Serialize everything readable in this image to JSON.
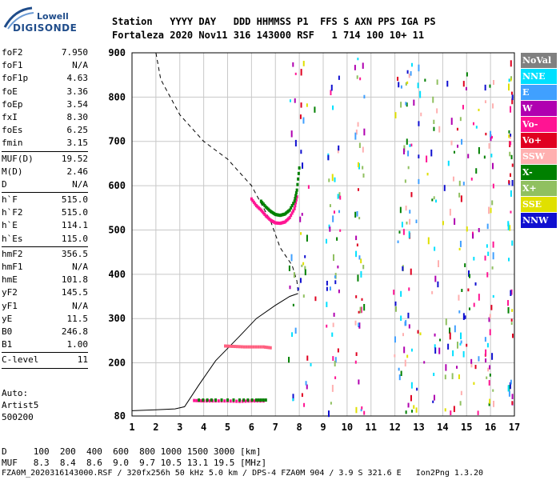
{
  "logo": {
    "line1": "Lowell",
    "line2": "DIGISONDE"
  },
  "header": {
    "line1": "Station   YYYY DAY   DDD HHMMSS P1  FFS S AXN PPS IGA PS",
    "line2": "Fortaleza 2020 Nov11 316 143000 RSF   1 714 100 10+ 11"
  },
  "params": [
    {
      "k": "foF2",
      "v": "7.950"
    },
    {
      "k": "foF1",
      "v": "N/A"
    },
    {
      "k": "foF1p",
      "v": "4.63"
    },
    {
      "k": "foE",
      "v": "3.36"
    },
    {
      "k": "foEp",
      "v": "3.54"
    },
    {
      "k": "fxI",
      "v": "8.30"
    },
    {
      "k": "foEs",
      "v": "6.25"
    },
    {
      "k": "fmin",
      "v": "3.15"
    },
    {
      "sep": true
    },
    {
      "k": "MUF(D)",
      "v": "19.52"
    },
    {
      "k": "M(D)",
      "v": "2.46"
    },
    {
      "k": "D",
      "v": "N/A"
    },
    {
      "sep": true
    },
    {
      "k": "h`F",
      "v": "515.0"
    },
    {
      "k": "h`F2",
      "v": "515.0"
    },
    {
      "k": "h`E",
      "v": "114.1"
    },
    {
      "k": "h`Es",
      "v": "115.0"
    },
    {
      "sep": true
    },
    {
      "k": "hmF2",
      "v": "356.5"
    },
    {
      "k": "hmF1",
      "v": "N/A"
    },
    {
      "k": "hmE",
      "v": "101.8"
    },
    {
      "k": "yF2",
      "v": "145.5"
    },
    {
      "k": "yF1",
      "v": "N/A"
    },
    {
      "k": "yE",
      "v": "11.5"
    },
    {
      "k": "B0",
      "v": "246.8"
    },
    {
      "k": "B1",
      "v": "1.00"
    },
    {
      "sep": true
    },
    {
      "k": "C-level",
      "v": "11"
    },
    {
      "sep": true
    }
  ],
  "auto": {
    "line1": "Auto:",
    "line2": "Artist5",
    "line3": "500200"
  },
  "footer": {
    "line1": "D     100  200  400  600  800 1000 1500 3000 [km]",
    "line2": "MUF   8.3  8.4  8.6  9.0  9.7 10.5 13.1 19.5 [MHz]",
    "line3": "FZA0M_2020316143000.RSF / 320fx256h 50 kHz 5.0 km / DPS-4 FZA0M 904 / 3.9 S 321.6 E   Ion2Png 1.3.20"
  },
  "legend": [
    {
      "label": "NoVal",
      "bg": "#808080",
      "fg": "#ffffff"
    },
    {
      "label": "NNE",
      "bg": "#00e0ff",
      "fg": "#ffffff"
    },
    {
      "label": "E",
      "bg": "#40a0ff",
      "fg": "#ffffff"
    },
    {
      "label": "W",
      "bg": "#b000b0",
      "fg": "#ffffff"
    },
    {
      "label": "Vo-",
      "bg": "#ff1493",
      "fg": "#ffffff"
    },
    {
      "label": "Vo+",
      "bg": "#e00020",
      "fg": "#ffffff"
    },
    {
      "label": "SSW",
      "bg": "#ffb0b0",
      "fg": "#ffffff"
    },
    {
      "label": "X-",
      "bg": "#008000",
      "fg": "#ffffff"
    },
    {
      "label": "X+",
      "bg": "#90c060",
      "fg": "#ffffff"
    },
    {
      "label": "SSE",
      "bg": "#e0e000",
      "fg": "#ffffff"
    },
    {
      "label": "NNW",
      "bg": "#1010d0",
      "fg": "#ffffff"
    }
  ],
  "chart_data": {
    "type": "scatter",
    "xlim": [
      1,
      17
    ],
    "ylim": [
      80,
      900
    ],
    "x_ticks": [
      1,
      2,
      3,
      4,
      5,
      6,
      7,
      8,
      9,
      10,
      11,
      12,
      13,
      14,
      15,
      16,
      17
    ],
    "y_ticks": [
      80,
      200,
      300,
      400,
      500,
      600,
      700,
      800,
      900
    ],
    "grid": true,
    "series": [
      {
        "name": "F2 trace (Vo-)",
        "color": "#ff1493",
        "points": [
          [
            6.0,
            570
          ],
          [
            6.2,
            555
          ],
          [
            6.4,
            545
          ],
          [
            6.6,
            532
          ],
          [
            6.8,
            522
          ],
          [
            7.0,
            516
          ],
          [
            7.2,
            515
          ],
          [
            7.4,
            518
          ],
          [
            7.6,
            528
          ],
          [
            7.8,
            548
          ],
          [
            7.9,
            575
          ]
        ]
      },
      {
        "name": "F2 trace (X-)",
        "color": "#008000",
        "points": [
          [
            6.4,
            565
          ],
          [
            6.6,
            552
          ],
          [
            6.8,
            542
          ],
          [
            7.0,
            535
          ],
          [
            7.2,
            533
          ],
          [
            7.4,
            536
          ],
          [
            7.6,
            545
          ],
          [
            7.8,
            565
          ],
          [
            7.9,
            590
          ],
          [
            8.0,
            640
          ]
        ]
      },
      {
        "name": "E/Es trace (Vo-)",
        "color": "#ff1493",
        "points": [
          [
            3.6,
            115
          ],
          [
            4.0,
            114
          ],
          [
            4.5,
            114
          ],
          [
            5.0,
            114
          ],
          [
            5.5,
            113
          ],
          [
            6.0,
            114
          ],
          [
            6.5,
            114
          ]
        ]
      },
      {
        "name": "Es trace (X-)",
        "color": "#008000",
        "points": [
          [
            3.8,
            116
          ],
          [
            4.5,
            116
          ],
          [
            5.5,
            116
          ],
          [
            6.2,
            116
          ],
          [
            6.6,
            116
          ]
        ]
      },
      {
        "name": "Oblique trace",
        "color": "#ff6080",
        "points": [
          [
            4.9,
            238
          ],
          [
            5.3,
            237
          ],
          [
            5.7,
            236
          ],
          [
            6.1,
            236
          ],
          [
            6.5,
            236
          ],
          [
            6.8,
            234
          ]
        ]
      }
    ],
    "profile": {
      "electron_density_solid": [
        [
          1.0,
          92
        ],
        [
          2.0,
          94
        ],
        [
          2.8,
          96
        ],
        [
          3.2,
          101
        ],
        [
          3.8,
          150
        ],
        [
          4.5,
          205
        ],
        [
          5.5,
          260
        ],
        [
          6.2,
          300
        ],
        [
          7.0,
          330
        ],
        [
          7.6,
          350
        ],
        [
          7.95,
          356.5
        ]
      ],
      "trace_dashed": [
        [
          1.1,
          900
        ],
        [
          2.0,
          900
        ],
        [
          2.2,
          840
        ],
        [
          3.0,
          760
        ],
        [
          4.0,
          700
        ],
        [
          5.0,
          660
        ],
        [
          6.0,
          600
        ],
        [
          6.8,
          520
        ],
        [
          7.2,
          460
        ],
        [
          7.7,
          420
        ],
        [
          7.9,
          385
        ],
        [
          7.95,
          360
        ]
      ]
    }
  }
}
